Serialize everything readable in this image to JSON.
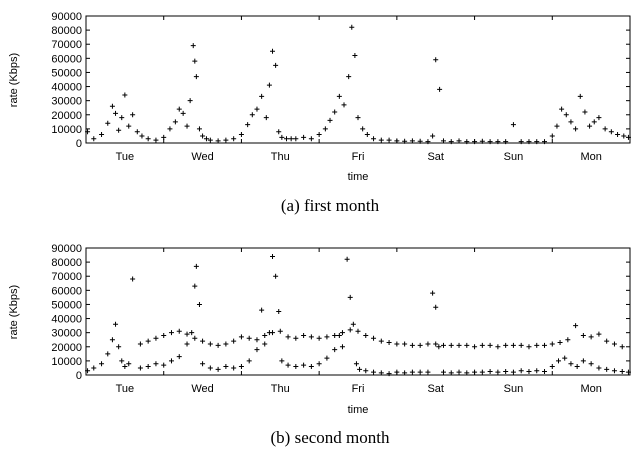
{
  "chart_data": [
    {
      "type": "scatter",
      "caption": "(a) first month",
      "xlabel": "time",
      "ylabel": "rate (Kbps)",
      "ylim": [
        0,
        90000
      ],
      "yticks": [
        "0",
        "10000",
        "20000",
        "30000",
        "40000",
        "50000",
        "60000",
        "70000",
        "80000",
        "90000"
      ],
      "xlim": [
        0,
        7
      ],
      "categories": [
        "Tue",
        "Wed",
        "Thu",
        "Fri",
        "Sat",
        "Sun",
        "Mon"
      ],
      "category_positions": [
        0.5,
        1.5,
        2.5,
        3.5,
        4.5,
        5.5,
        6.5
      ],
      "grid": false,
      "series": [
        {
          "marker": "+",
          "x": [
            0.02,
            0.1,
            0.2,
            0.28,
            0.34,
            0.38,
            0.42,
            0.46,
            0.5,
            0.55,
            0.6,
            0.66,
            0.72,
            0.8,
            0.9,
            1.0,
            1.08,
            1.15,
            1.2,
            1.25,
            1.3,
            1.34,
            1.38,
            1.4,
            1.42,
            1.46,
            1.5,
            1.55,
            1.6,
            1.7,
            1.8,
            1.9,
            2.0,
            2.08,
            2.14,
            2.2,
            2.26,
            2.32,
            2.36,
            2.4,
            2.44,
            2.48,
            2.52,
            2.58,
            2.64,
            2.7,
            2.8,
            2.9,
            3.0,
            3.08,
            3.14,
            3.2,
            3.26,
            3.32,
            3.38,
            3.42,
            3.46,
            3.5,
            3.56,
            3.62,
            3.7,
            3.8,
            3.9,
            4.0,
            4.1,
            4.2,
            4.3,
            4.4,
            4.46,
            4.5,
            4.55,
            4.6,
            4.7,
            4.8,
            4.9,
            5.0,
            5.1,
            5.2,
            5.3,
            5.4,
            5.5,
            5.6,
            5.7,
            5.8,
            5.9,
            6.0,
            6.06,
            6.12,
            6.18,
            6.24,
            6.3,
            6.36,
            6.42,
            6.48,
            6.54,
            6.6,
            6.68,
            6.76,
            6.84,
            6.92,
            6.98
          ],
          "y": [
            8000,
            3000,
            6000,
            14000,
            26000,
            21000,
            9000,
            18000,
            34000,
            12000,
            20000,
            8000,
            5000,
            3000,
            2000,
            4000,
            10000,
            15000,
            24000,
            21000,
            12000,
            30000,
            69000,
            58000,
            47000,
            10000,
            5000,
            3000,
            2000,
            1500,
            2000,
            3000,
            6000,
            13000,
            20000,
            24000,
            33000,
            18000,
            41000,
            65000,
            55000,
            8000,
            4000,
            3000,
            3000,
            3000,
            4000,
            3000,
            6000,
            10000,
            16000,
            22000,
            33000,
            27000,
            47000,
            82000,
            62000,
            18000,
            10000,
            6000,
            3000,
            2000,
            2000,
            1500,
            1200,
            1500,
            1200,
            1000,
            5000,
            59000,
            38000,
            1500,
            1000,
            1500,
            1000,
            1000,
            1200,
            1000,
            1000,
            1000,
            13000,
            1000,
            1000,
            1000,
            1000,
            5000,
            12000,
            24000,
            20000,
            15000,
            10000,
            33000,
            22000,
            12000,
            15000,
            18000,
            10000,
            8000,
            6000,
            5000,
            4000
          ]
        }
      ]
    },
    {
      "type": "scatter",
      "caption": "(b) second month",
      "xlabel": "time",
      "ylabel": "rate (Kbps)",
      "ylim": [
        0,
        90000
      ],
      "yticks": [
        "0",
        "10000",
        "20000",
        "30000",
        "40000",
        "50000",
        "60000",
        "70000",
        "80000",
        "90000"
      ],
      "xlim": [
        0,
        7
      ],
      "categories": [
        "Tue",
        "Wed",
        "Thu",
        "Fri",
        "Sat",
        "Sun",
        "Mon"
      ],
      "category_positions": [
        0.5,
        1.5,
        2.5,
        3.5,
        4.5,
        5.5,
        6.5
      ],
      "grid": false,
      "series": [
        {
          "marker": "+",
          "x": [
            0.02,
            0.1,
            0.2,
            0.28,
            0.34,
            0.38,
            0.42,
            0.46,
            0.5,
            0.55,
            0.6,
            0.7,
            0.8,
            0.9,
            1.0,
            1.1,
            1.2,
            1.3,
            1.36,
            1.4,
            1.42,
            1.46,
            1.5,
            1.6,
            1.7,
            1.8,
            1.9,
            2.0,
            2.1,
            2.2,
            2.26,
            2.3,
            2.36,
            2.4,
            2.44,
            2.48,
            2.52,
            2.6,
            2.7,
            2.8,
            2.9,
            3.0,
            3.1,
            3.2,
            3.26,
            3.3,
            3.36,
            3.4,
            3.44,
            3.48,
            3.52,
            3.6,
            3.7,
            3.8,
            3.9,
            4.0,
            4.1,
            4.2,
            4.3,
            4.4,
            4.46,
            4.5,
            4.54,
            4.6,
            4.7,
            4.8,
            4.9,
            5.0,
            5.1,
            5.2,
            5.3,
            5.4,
            5.5,
            5.6,
            5.7,
            5.8,
            5.9,
            6.0,
            6.08,
            6.16,
            6.24,
            6.32,
            6.4,
            6.5,
            6.6,
            6.7,
            6.8,
            6.9,
            6.98
          ],
          "y": [
            3000,
            5000,
            8000,
            15000,
            25000,
            36000,
            20000,
            10000,
            6000,
            8000,
            68000,
            5000,
            6000,
            8000,
            7000,
            10000,
            13000,
            22000,
            30000,
            63000,
            77000,
            50000,
            8000,
            5000,
            4000,
            6000,
            5000,
            6000,
            10000,
            18000,
            46000,
            22000,
            30000,
            84000,
            70000,
            45000,
            10000,
            7000,
            6000,
            7000,
            6000,
            8000,
            12000,
            18000,
            28000,
            20000,
            82000,
            55000,
            36000,
            8000,
            4000,
            3000,
            2000,
            1500,
            1000,
            2000,
            1500,
            2000,
            2000,
            2000,
            58000,
            48000,
            20000,
            2000,
            1500,
            2000,
            1500,
            2000,
            2000,
            2500,
            2000,
            2500,
            2000,
            3000,
            2500,
            3000,
            2500,
            6000,
            10000,
            12000,
            8000,
            6000,
            10000,
            8000,
            5000,
            4000,
            3000,
            2500,
            2000
          ]
        },
        {
          "marker": "+",
          "x": [
            0.7,
            0.8,
            0.9,
            1.0,
            1.1,
            1.2,
            1.3,
            1.4,
            1.5,
            1.6,
            1.7,
            1.8,
            1.9,
            2.0,
            2.1,
            2.2,
            2.3,
            2.4,
            2.5,
            2.6,
            2.7,
            2.8,
            2.9,
            3.0,
            3.1,
            3.2,
            3.3,
            3.4,
            3.5,
            3.6,
            3.7,
            3.8,
            3.9,
            4.0,
            4.1,
            4.2,
            4.3,
            4.4,
            4.5,
            4.6,
            4.7,
            4.8,
            4.9,
            5.0,
            5.1,
            5.2,
            5.3,
            5.4,
            5.5,
            5.6,
            5.7,
            5.8,
            5.9,
            6.0,
            6.1,
            6.2,
            6.3,
            6.4,
            6.5,
            6.6,
            6.7,
            6.8,
            6.9
          ],
          "y": [
            22000,
            24000,
            26000,
            28000,
            30000,
            31000,
            29000,
            26000,
            24000,
            22000,
            21000,
            22000,
            24000,
            27000,
            26000,
            25000,
            28000,
            30000,
            31000,
            27000,
            26000,
            28000,
            27000,
            26000,
            27000,
            28000,
            30000,
            32000,
            31000,
            28000,
            26000,
            24000,
            23000,
            22000,
            22000,
            21000,
            21000,
            22000,
            22000,
            21000,
            21000,
            21000,
            21000,
            20000,
            21000,
            21000,
            20000,
            21000,
            21000,
            21000,
            20000,
            21000,
            21000,
            22000,
            23000,
            25000,
            35000,
            28000,
            27000,
            29000,
            24000,
            22000,
            20000
          ]
        }
      ]
    }
  ]
}
